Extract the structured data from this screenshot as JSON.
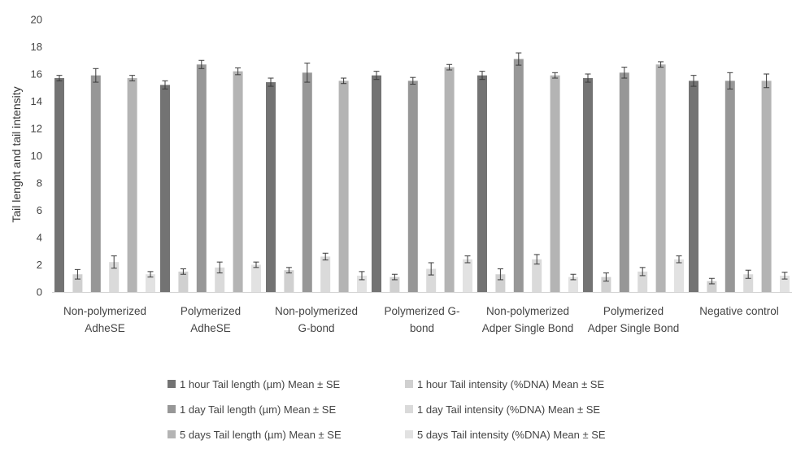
{
  "chart_data": {
    "type": "bar",
    "title": "",
    "xlabel": "",
    "ylabel": "Tail lenght and tail intensity",
    "ylim": [
      0,
      20
    ],
    "yticks": [
      0,
      2,
      4,
      6,
      8,
      10,
      12,
      14,
      16,
      18,
      20
    ],
    "grid": false,
    "legend_position": "bottom",
    "categories": [
      [
        "Non-polymerized",
        "AdheSE"
      ],
      [
        "Polymerized",
        "AdheSE"
      ],
      [
        "Non-polymerized",
        "G-bond"
      ],
      [
        "Polymerized G-",
        "bond"
      ],
      [
        "Non-polymerized",
        "Adper Single Bond"
      ],
      [
        "Polymerized",
        "Adper Single Bond"
      ],
      [
        "Negative control"
      ]
    ],
    "series": [
      {
        "name": "1 hour Tail length (µm) Mean ± SE",
        "color": "#737373",
        "values": [
          15.7,
          15.2,
          15.4,
          15.9,
          15.9,
          15.7,
          15.5
        ],
        "errors": [
          0.2,
          0.3,
          0.3,
          0.3,
          0.3,
          0.3,
          0.4
        ]
      },
      {
        "name": "1 hour Tail intensity (%DNA) Mean ± SE",
        "color": "#d0d0d0",
        "values": [
          1.3,
          1.5,
          1.6,
          1.1,
          1.3,
          1.1,
          0.8
        ],
        "errors": [
          0.35,
          0.2,
          0.2,
          0.2,
          0.4,
          0.3,
          0.2
        ]
      },
      {
        "name": "1 day Tail length (µm) Mean ± SE",
        "color": "#979797",
        "values": [
          15.9,
          16.7,
          16.1,
          15.5,
          17.1,
          16.1,
          15.5
        ],
        "errors": [
          0.5,
          0.3,
          0.7,
          0.25,
          0.45,
          0.4,
          0.6
        ]
      },
      {
        "name": "1 day Tail intensity (%DNA) Mean ± SE",
        "color": "#dadada",
        "values": [
          2.2,
          1.8,
          2.6,
          1.7,
          2.4,
          1.5,
          1.3
        ],
        "errors": [
          0.45,
          0.4,
          0.25,
          0.45,
          0.35,
          0.3,
          0.3
        ]
      },
      {
        "name": "5 days Tail length (µm) Mean ± SE",
        "color": "#b4b4b4",
        "values": [
          15.7,
          16.2,
          15.5,
          16.5,
          15.9,
          16.7,
          15.5
        ],
        "errors": [
          0.2,
          0.25,
          0.2,
          0.2,
          0.2,
          0.2,
          0.5
        ]
      },
      {
        "name": "5 days Tail intensity (%DNA) Mean ± SE",
        "color": "#e2e2e2",
        "values": [
          1.3,
          2.0,
          1.2,
          2.4,
          1.1,
          2.4,
          1.2
        ],
        "errors": [
          0.2,
          0.2,
          0.3,
          0.25,
          0.2,
          0.25,
          0.25
        ]
      }
    ],
    "bar_order": [
      0,
      1,
      2,
      3,
      4,
      5
    ],
    "legend_order": [
      0,
      1,
      2,
      3,
      4,
      5
    ]
  }
}
